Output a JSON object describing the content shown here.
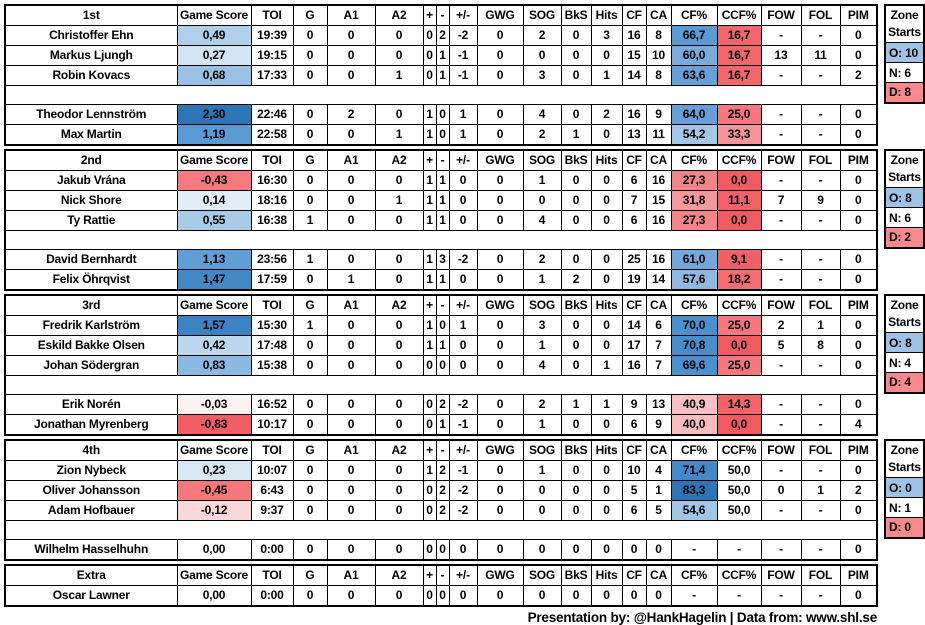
{
  "chart_data": {
    "type": "table",
    "columns": [
      "Game Score",
      "TOI",
      "G",
      "A1",
      "A2",
      "+",
      "-",
      "+/-",
      "GWG",
      "SOG",
      "BkS",
      "Hits",
      "CF",
      "CA",
      "CF%",
      "CCF%",
      "FOW",
      "FOL",
      "PIM"
    ],
    "zone_header": [
      "Zone",
      "Starts"
    ],
    "sections": [
      {
        "label": "1st",
        "zone": {
          "o": "O: 10",
          "n": "N: 6",
          "d": "D: 8"
        },
        "rows": [
          {
            "name": "Christoffer Ehn",
            "cells": [
              "0,49",
              "19:39",
              "0",
              "0",
              "0",
              "0",
              "2",
              "-2",
              "0",
              "2",
              "0",
              "3",
              "16",
              "8",
              "66,7",
              "16,7",
              "-",
              "-",
              "0"
            ],
            "bg": {
              "0": "#AFCFEA",
              "14": "#5B9BD5",
              "15": "#F2666C"
            }
          },
          {
            "name": "Markus Ljungh",
            "cells": [
              "0,27",
              "19:15",
              "0",
              "0",
              "0",
              "0",
              "1",
              "-1",
              "0",
              "0",
              "0",
              "0",
              "15",
              "10",
              "60,0",
              "16,7",
              "13",
              "11",
              "0"
            ],
            "bg": {
              "0": "#D4E4F3",
              "14": "#79ACDC",
              "15": "#F2666C"
            }
          },
          {
            "name": "Robin Kovacs",
            "cells": [
              "0,68",
              "17:33",
              "0",
              "0",
              "1",
              "0",
              "1",
              "-1",
              "0",
              "3",
              "0",
              "1",
              "14",
              "8",
              "63,6",
              "16,7",
              "-",
              "-",
              "2"
            ],
            "bg": {
              "0": "#9AC1E5",
              "14": "#689FD7",
              "15": "#F2666C"
            }
          },
          null,
          {
            "name": "Theodor Lennström",
            "cells": [
              "2,30",
              "22:46",
              "0",
              "2",
              "0",
              "1",
              "0",
              "1",
              "0",
              "4",
              "0",
              "2",
              "16",
              "9",
              "64,0",
              "25,0",
              "-",
              "-",
              "0"
            ],
            "bg": {
              "0": "#2E75B6",
              "14": "#67A0D8",
              "15": "#F4787D"
            }
          },
          {
            "name": "Max Martin",
            "cells": [
              "1,19",
              "22:58",
              "0",
              "0",
              "1",
              "1",
              "0",
              "1",
              "0",
              "2",
              "1",
              "0",
              "13",
              "11",
              "54,2",
              "33,3",
              "-",
              "-",
              "0"
            ],
            "bg": {
              "0": "#5B9BD5",
              "14": "#A4C7E7",
              "15": "#F59599"
            }
          }
        ]
      },
      {
        "label": "2nd",
        "zone": {
          "o": "O: 8",
          "n": "N: 6",
          "d": "D: 2"
        },
        "rows": [
          {
            "name": "Jakub Vrána",
            "cells": [
              "-0,43",
              "16:30",
              "0",
              "0",
              "0",
              "1",
              "1",
              "0",
              "0",
              "1",
              "0",
              "0",
              "6",
              "16",
              "27,3",
              "0,0",
              "-",
              "-",
              "0"
            ],
            "bg": {
              "0": "#F5797E",
              "14": "#F48488",
              "15": "#F05B62"
            }
          },
          {
            "name": "Nick Shore",
            "cells": [
              "0,14",
              "18:16",
              "0",
              "0",
              "1",
              "1",
              "1",
              "0",
              "0",
              "0",
              "0",
              "0",
              "7",
              "15",
              "31,8",
              "11,1",
              "7",
              "9",
              "0"
            ],
            "bg": {
              "0": "#E3EDF8",
              "14": "#F5989C",
              "15": "#F16167"
            }
          },
          {
            "name": "Ty Rattie",
            "cells": [
              "0,55",
              "16:38",
              "1",
              "0",
              "0",
              "1",
              "1",
              "0",
              "0",
              "4",
              "0",
              "0",
              "6",
              "16",
              "27,3",
              "0,0",
              "-",
              "-",
              "0"
            ],
            "bg": {
              "0": "#A8CBE8",
              "14": "#F48488",
              "15": "#F05B62"
            }
          },
          null,
          {
            "name": "David Bernhardt",
            "cells": [
              "1,13",
              "23:56",
              "1",
              "0",
              "0",
              "1",
              "3",
              "-2",
              "0",
              "2",
              "0",
              "0",
              "25",
              "16",
              "61,0",
              "9,1",
              "-",
              "-",
              "0"
            ],
            "bg": {
              "0": "#5F9ED6",
              "14": "#74A8DA",
              "15": "#F16066"
            }
          },
          {
            "name": "Felix Öhrqvist",
            "cells": [
              "1,47",
              "17:59",
              "0",
              "1",
              "0",
              "1",
              "1",
              "0",
              "0",
              "1",
              "2",
              "0",
              "19",
              "14",
              "57,6",
              "18,2",
              "-",
              "-",
              "0"
            ],
            "bg": {
              "0": "#4288C7",
              "14": "#8FB9E1",
              "15": "#F36D72"
            }
          }
        ]
      },
      {
        "label": "3rd",
        "zone": {
          "o": "O: 8",
          "n": "N: 4",
          "d": "D: 4"
        },
        "rows": [
          {
            "name": "Fredrik Karlström",
            "cells": [
              "1,57",
              "15:30",
              "1",
              "0",
              "0",
              "1",
              "0",
              "1",
              "0",
              "3",
              "0",
              "0",
              "14",
              "6",
              "70,0",
              "25,0",
              "2",
              "1",
              "0"
            ],
            "bg": {
              "0": "#3C83C4",
              "14": "#4A90CE",
              "15": "#F4787D"
            }
          },
          {
            "name": "Eskild Bakke Olsen",
            "cells": [
              "0,42",
              "17:48",
              "0",
              "0",
              "0",
              "1",
              "1",
              "0",
              "0",
              "1",
              "0",
              "0",
              "17",
              "7",
              "70,8",
              "0,0",
              "5",
              "8",
              "0"
            ],
            "bg": {
              "0": "#BDD7EF",
              "14": "#478ECD",
              "15": "#F05B62"
            }
          },
          {
            "name": "Johan Södergran",
            "cells": [
              "0,83",
              "15:38",
              "0",
              "0",
              "0",
              "0",
              "0",
              "0",
              "0",
              "4",
              "0",
              "1",
              "16",
              "7",
              "69,6",
              "25,0",
              "-",
              "-",
              "0"
            ],
            "bg": {
              "0": "#8CB9E2",
              "14": "#4B91CF",
              "15": "#F4787D"
            }
          },
          null,
          {
            "name": "Erik Norén",
            "cells": [
              "-0,03",
              "16:52",
              "0",
              "0",
              "0",
              "0",
              "2",
              "-2",
              "0",
              "2",
              "1",
              "1",
              "9",
              "13",
              "40,9",
              "14,3",
              "-",
              "-",
              "0"
            ],
            "bg": {
              "0": "#FDF2F2",
              "14": "#F8C0C2",
              "15": "#F2646A"
            }
          },
          {
            "name": "Jonathan Myrenberg",
            "cells": [
              "-0,83",
              "10:17",
              "0",
              "0",
              "0",
              "0",
              "1",
              "-1",
              "0",
              "1",
              "0",
              "0",
              "6",
              "9",
              "40,0",
              "0,0",
              "-",
              "-",
              "4"
            ],
            "bg": {
              "0": "#F15F66",
              "14": "#F8BCBE",
              "15": "#F05B62"
            }
          }
        ]
      },
      {
        "label": "4th",
        "zone": {
          "o": "O: 0",
          "n": "N: 1",
          "d": "D: 0"
        },
        "rows": [
          {
            "name": "Zion Nybeck",
            "cells": [
              "0,23",
              "10:07",
              "0",
              "0",
              "0",
              "1",
              "2",
              "-1",
              "0",
              "1",
              "0",
              "0",
              "10",
              "4",
              "71,4",
              "50,0",
              "-",
              "-",
              "0"
            ],
            "bg": {
              "0": "#D9E7F5",
              "14": "#4389C9"
            }
          },
          {
            "name": "Oliver Johansson",
            "cells": [
              "-0,45",
              "6:43",
              "0",
              "0",
              "0",
              "0",
              "2",
              "-2",
              "0",
              "0",
              "0",
              "0",
              "5",
              "1",
              "83,3",
              "50,0",
              "0",
              "1",
              "2"
            ],
            "bg": {
              "0": "#F5777C",
              "14": "#2E75B6"
            }
          },
          {
            "name": "Adam Hofbauer",
            "cells": [
              "-0,12",
              "9:37",
              "0",
              "0",
              "0",
              "0",
              "2",
              "-2",
              "0",
              "0",
              "0",
              "0",
              "6",
              "5",
              "54,6",
              "50,0",
              "-",
              "-",
              "0"
            ],
            "bg": {
              "0": "#FAD8DA",
              "14": "#A2C6E7"
            }
          },
          null,
          {
            "name": "Wilhelm Hasselhuhn",
            "cells": [
              "0,00",
              "0:00",
              "0",
              "0",
              "0",
              "0",
              "0",
              "0",
              "0",
              "0",
              "0",
              "0",
              "0",
              "0",
              "-",
              "-",
              "-",
              "-",
              "0"
            ],
            "bg": {}
          }
        ]
      },
      {
        "label": "Extra",
        "zone": null,
        "rows": [
          {
            "name": "Oscar Lawner",
            "cells": [
              "0,00",
              "0:00",
              "0",
              "0",
              "0",
              "0",
              "0",
              "0",
              "0",
              "0",
              "0",
              "0",
              "0",
              "0",
              "-",
              "-",
              "-",
              "-",
              "0"
            ],
            "bg": {}
          }
        ]
      }
    ],
    "footer": "Presentation by: @HankHagelin | Data from: www.shl.se"
  },
  "colors": {
    "border": "#000000",
    "zone_offensive_bg": "#9DC3E6",
    "zone_defensive_bg": "#F9898C",
    "gamescore_max_bg": "#2E75B6",
    "gamescore_min_bg": "#F15F66"
  }
}
